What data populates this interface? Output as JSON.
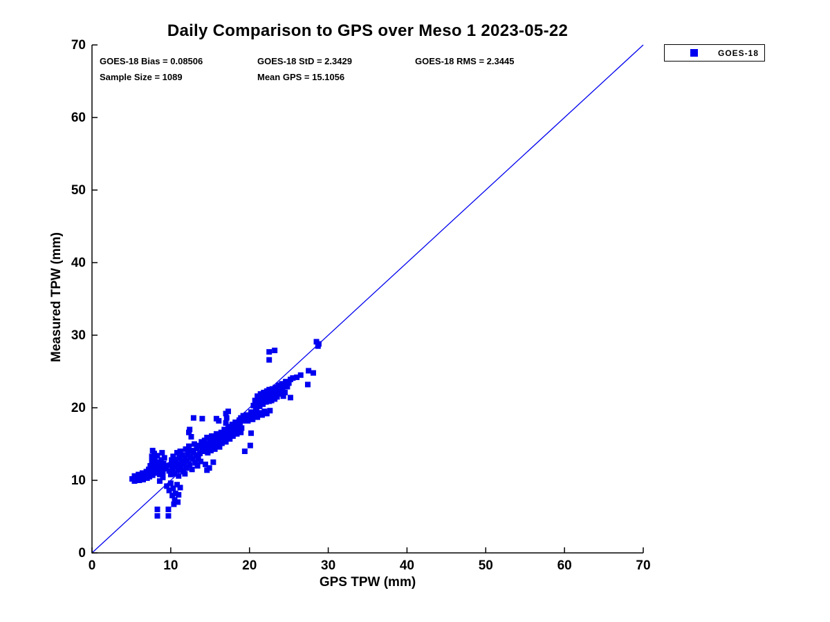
{
  "title": "Daily Comparison to GPS over Meso 1 2023-05-22",
  "stats": {
    "bias": "GOES-18 Bias = 0.08506",
    "std": "GOES-18 StD = 2.3429",
    "rms": "GOES-18 RMS = 2.3445",
    "sample_size": "Sample Size = 1089",
    "mean_gps": "Mean GPS = 15.1056"
  },
  "legend": {
    "entries": [
      {
        "label": "GOES-18",
        "marker": "square",
        "color": "#0000F0"
      }
    ],
    "position": "top-right-outside"
  },
  "colors": {
    "marker": "#0000F0",
    "line": "#0000EE",
    "axis": "#000000",
    "text": "#000000",
    "background": "#FFFFFF"
  },
  "chart_data": {
    "type": "scatter",
    "title": "Daily Comparison to GPS over Meso 1 2023-05-22",
    "xlabel": "GPS TPW (mm)",
    "ylabel": "Measured TPW (mm)",
    "xlim": [
      0,
      70
    ],
    "ylim": [
      0,
      70
    ],
    "xticks": [
      0,
      10,
      20,
      30,
      40,
      50,
      60,
      70
    ],
    "yticks": [
      0,
      10,
      20,
      30,
      40,
      50,
      60,
      70
    ],
    "grid": false,
    "legend_position": "top-right-outside",
    "stats": {
      "bias": 0.08506,
      "std": 2.3429,
      "rms": 2.3445,
      "sample_size": 1089,
      "mean_gps": 15.1056
    },
    "reference_line": {
      "from": [
        0,
        0
      ],
      "to": [
        70,
        70
      ],
      "meaning": "1:1 identity line"
    },
    "series": [
      {
        "name": "GOES-18",
        "marker": "square",
        "color": "#0000F0",
        "points": [
          [
            5.1,
            10.2
          ],
          [
            5.4,
            10.6
          ],
          [
            5.4,
            9.9
          ],
          [
            5.7,
            10.3
          ],
          [
            5.9,
            10.8
          ],
          [
            6.0,
            10.0
          ],
          [
            6.2,
            10.5
          ],
          [
            6.4,
            11.0
          ],
          [
            6.5,
            10.1
          ],
          [
            6.7,
            10.7
          ],
          [
            6.9,
            11.2
          ],
          [
            7.0,
            10.3
          ],
          [
            7.1,
            10.9
          ],
          [
            7.2,
            11.5
          ],
          [
            7.3,
            10.5
          ],
          [
            7.4,
            12.0
          ],
          [
            7.5,
            11.1
          ],
          [
            7.6,
            12.6
          ],
          [
            7.6,
            13.3
          ],
          [
            7.7,
            14.1
          ],
          [
            7.7,
            10.7
          ],
          [
            7.8,
            11.6
          ],
          [
            7.8,
            12.2
          ],
          [
            7.9,
            13.7
          ],
          [
            8.0,
            11.0
          ],
          [
            8.0,
            12.9
          ],
          [
            8.1,
            11.9
          ],
          [
            8.2,
            12.5
          ],
          [
            8.3,
            13.4
          ],
          [
            8.4,
            11.3
          ],
          [
            8.5,
            12.1
          ],
          [
            8.6,
            10.8
          ],
          [
            8.7,
            11.7
          ],
          [
            8.8,
            12.8
          ],
          [
            8.9,
            13.8
          ],
          [
            9.0,
            11.1
          ],
          [
            9.1,
            12.3
          ],
          [
            9.2,
            13.1
          ],
          [
            9.3,
            11.6
          ],
          [
            9.4,
            12.0
          ],
          [
            8.6,
            9.9
          ],
          [
            9.0,
            10.4
          ],
          [
            9.8,
            11.3
          ],
          [
            9.9,
            12.1
          ],
          [
            10.0,
            10.8
          ],
          [
            10.1,
            12.8
          ],
          [
            10.2,
            11.6
          ],
          [
            10.3,
            13.3
          ],
          [
            10.4,
            12.4
          ],
          [
            10.5,
            10.9
          ],
          [
            10.6,
            11.9
          ],
          [
            10.7,
            12.9
          ],
          [
            10.8,
            13.8
          ],
          [
            10.9,
            11.4
          ],
          [
            11.0,
            12.2
          ],
          [
            11.1,
            13.1
          ],
          [
            11.2,
            14.0
          ],
          [
            11.3,
            11.8
          ],
          [
            11.4,
            12.6
          ],
          [
            11.5,
            13.5
          ],
          [
            11.6,
            11.2
          ],
          [
            11.7,
            12.3
          ],
          [
            11.8,
            13.0
          ],
          [
            11.9,
            14.3
          ],
          [
            12.0,
            11.7
          ],
          [
            12.1,
            12.7
          ],
          [
            12.2,
            13.6
          ],
          [
            12.3,
            14.7
          ],
          [
            12.3,
            16.6
          ],
          [
            12.4,
            17.0
          ],
          [
            12.4,
            12.1
          ],
          [
            12.5,
            13.2
          ],
          [
            12.6,
            14.1
          ],
          [
            12.6,
            16.0
          ],
          [
            12.7,
            11.5
          ],
          [
            12.8,
            12.9
          ],
          [
            12.9,
            13.9
          ],
          [
            13.0,
            15.0
          ],
          [
            13.1,
            12.4
          ],
          [
            13.2,
            13.5
          ],
          [
            13.3,
            14.4
          ],
          [
            13.4,
            12.0
          ],
          [
            13.5,
            13.0
          ],
          [
            13.6,
            14.8
          ],
          [
            13.7,
            13.7
          ],
          [
            13.8,
            12.6
          ],
          [
            13.9,
            15.3
          ],
          [
            14.0,
            14.2
          ],
          [
            11.0,
            10.6
          ],
          [
            11.8,
            10.9
          ],
          [
            9.5,
            9.2
          ],
          [
            9.8,
            8.6
          ],
          [
            10.0,
            9.6
          ],
          [
            10.2,
            7.9
          ],
          [
            10.3,
            8.9
          ],
          [
            10.5,
            7.3
          ],
          [
            10.6,
            8.2
          ],
          [
            10.8,
            9.4
          ],
          [
            11.0,
            8.0
          ],
          [
            11.2,
            9.0
          ],
          [
            10.4,
            6.7
          ],
          [
            10.9,
            7.0
          ],
          [
            8.3,
            6.0
          ],
          [
            8.3,
            5.1
          ],
          [
            9.7,
            6.0
          ],
          [
            9.7,
            5.1
          ],
          [
            14.4,
            12.2
          ],
          [
            14.9,
            11.7
          ],
          [
            15.4,
            12.5
          ],
          [
            14.6,
            11.4
          ],
          [
            14.1,
            14.9
          ],
          [
            14.2,
            14.0
          ],
          [
            14.3,
            15.5
          ],
          [
            14.5,
            14.4
          ],
          [
            14.6,
            15.9
          ],
          [
            14.7,
            13.8
          ],
          [
            14.8,
            15.0
          ],
          [
            14.9,
            14.5
          ],
          [
            15.0,
            15.6
          ],
          [
            15.1,
            14.1
          ],
          [
            15.2,
            16.1
          ],
          [
            15.3,
            15.2
          ],
          [
            15.4,
            14.7
          ],
          [
            15.5,
            15.8
          ],
          [
            15.6,
            14.3
          ],
          [
            15.7,
            15.3
          ],
          [
            15.8,
            16.4
          ],
          [
            15.9,
            14.9
          ],
          [
            16.0,
            15.5
          ],
          [
            16.1,
            16.0
          ],
          [
            16.2,
            14.6
          ],
          [
            16.3,
            15.8
          ],
          [
            16.4,
            16.6
          ],
          [
            16.5,
            15.1
          ],
          [
            16.6,
            16.2
          ],
          [
            16.7,
            15.6
          ],
          [
            16.8,
            17.0
          ],
          [
            16.9,
            16.5
          ],
          [
            17.0,
            15.3
          ],
          [
            17.1,
            16.8
          ],
          [
            17.2,
            16.0
          ],
          [
            17.3,
            17.4
          ],
          [
            17.4,
            16.3
          ],
          [
            17.5,
            15.7
          ],
          [
            17.6,
            17.1
          ],
          [
            17.7,
            16.6
          ],
          [
            17.8,
            17.7
          ],
          [
            17.9,
            16.1
          ],
          [
            18.0,
            17.3
          ],
          [
            18.1,
            16.8
          ],
          [
            18.2,
            18.0
          ],
          [
            18.3,
            17.5
          ],
          [
            18.4,
            16.4
          ],
          [
            18.5,
            17.9
          ],
          [
            18.6,
            17.0
          ],
          [
            18.7,
            18.3
          ],
          [
            18.8,
            17.6
          ],
          [
            18.9,
            18.6
          ],
          [
            19.0,
            17.2
          ],
          [
            19.1,
            18.2
          ],
          [
            19.2,
            18.9
          ],
          [
            18.9,
            16.6
          ],
          [
            12.9,
            18.6
          ],
          [
            14.0,
            18.5
          ],
          [
            15.8,
            18.5
          ],
          [
            16.1,
            18.2
          ],
          [
            17.3,
            19.5
          ],
          [
            17.0,
            19.2
          ],
          [
            17.1,
            18.6
          ],
          [
            17.0,
            17.9
          ],
          [
            19.4,
            18.5
          ],
          [
            19.6,
            19.0
          ],
          [
            19.8,
            18.2
          ],
          [
            20.0,
            18.8
          ],
          [
            20.2,
            19.4
          ],
          [
            20.4,
            18.4
          ],
          [
            20.6,
            19.1
          ],
          [
            20.8,
            19.6
          ],
          [
            21.0,
            18.7
          ],
          [
            21.3,
            19.3
          ],
          [
            21.6,
            19.0
          ],
          [
            21.9,
            19.5
          ],
          [
            22.2,
            19.2
          ],
          [
            22.6,
            19.6
          ],
          [
            20.5,
            20.3
          ],
          [
            20.7,
            21.0
          ],
          [
            20.9,
            20.0
          ],
          [
            21.0,
            21.6
          ],
          [
            21.1,
            20.6
          ],
          [
            21.2,
            21.2
          ],
          [
            21.3,
            20.2
          ],
          [
            21.4,
            21.9
          ],
          [
            21.5,
            20.9
          ],
          [
            21.6,
            21.4
          ],
          [
            21.7,
            20.5
          ],
          [
            21.8,
            22.1
          ],
          [
            21.9,
            21.1
          ],
          [
            22.0,
            21.7
          ],
          [
            22.1,
            20.8
          ],
          [
            22.2,
            22.3
          ],
          [
            22.3,
            21.3
          ],
          [
            22.4,
            21.9
          ],
          [
            22.5,
            20.9
          ],
          [
            22.5,
            22.5
          ],
          [
            22.6,
            21.5
          ],
          [
            22.7,
            22.0
          ],
          [
            22.8,
            21.0
          ],
          [
            22.9,
            22.6
          ],
          [
            23.0,
            21.7
          ],
          [
            23.1,
            22.2
          ],
          [
            23.2,
            21.2
          ],
          [
            23.3,
            22.8
          ],
          [
            23.4,
            22.0
          ],
          [
            23.5,
            21.5
          ],
          [
            23.6,
            22.4
          ],
          [
            23.7,
            23.1
          ],
          [
            23.8,
            21.9
          ],
          [
            23.9,
            22.7
          ],
          [
            24.0,
            22.2
          ],
          [
            24.1,
            23.3
          ],
          [
            24.2,
            22.5
          ],
          [
            24.4,
            23.0
          ],
          [
            24.5,
            22.1
          ],
          [
            24.6,
            23.6
          ],
          [
            24.8,
            22.9
          ],
          [
            25.0,
            23.4
          ],
          [
            25.2,
            23.9
          ],
          [
            25.5,
            24.1
          ],
          [
            24.3,
            21.6
          ],
          [
            25.2,
            21.4
          ],
          [
            26.0,
            24.2
          ],
          [
            26.5,
            24.5
          ],
          [
            27.4,
            23.2
          ],
          [
            27.5,
            25.1
          ],
          [
            28.1,
            24.8
          ],
          [
            22.5,
            27.7
          ],
          [
            23.2,
            27.9
          ],
          [
            22.5,
            26.6
          ],
          [
            28.5,
            29.1
          ],
          [
            28.8,
            28.8
          ],
          [
            28.7,
            28.5
          ],
          [
            20.2,
            16.5
          ],
          [
            19.4,
            14.0
          ],
          [
            20.1,
            14.8
          ]
        ]
      }
    ]
  }
}
